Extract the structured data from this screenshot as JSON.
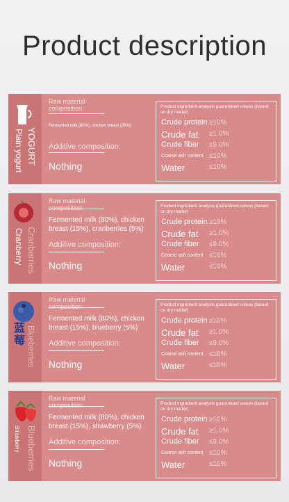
{
  "header": {
    "title": "Product description"
  },
  "cards": [
    {
      "side_labels": [
        "YOGURT",
        "Plain yogurt"
      ],
      "raw_label": "Raw material composition:",
      "raw_text": "Fermented milk (80%), chicken breast (20%)",
      "additive_label": "Additive composition:",
      "additive_value": "Nothing",
      "analysis_title": "Product ingredient analysis guaranteed values (based on dry matter)",
      "rows": [
        {
          "name": "Crude protein",
          "value": "≥10%"
        },
        {
          "name": "Crude fat",
          "value": "≥1.0%"
        },
        {
          "name": "Crude fiber",
          "value": "≤9.0%"
        },
        {
          "name": "Coarse ash content",
          "value": "≤10%"
        },
        {
          "name": "Water",
          "value": "≤10%"
        }
      ]
    },
    {
      "side_labels": [
        "Cranberries",
        "Cranberry"
      ],
      "raw_label": "Raw material composition:",
      "raw_text": "Fermented milk (80%), chicken breast (15%), cranberries (5%)",
      "additive_label": "Additive composition:",
      "additive_value": "Nothing",
      "analysis_title": "Product ingredient analysis guaranteed values (based on dry matter)",
      "rows": [
        {
          "name": "Crude protein",
          "value": "≥10%"
        },
        {
          "name": "Crude fat",
          "value": "≥1.0%"
        },
        {
          "name": "Crude fiber",
          "value": "≤9.0%"
        },
        {
          "name": "Coarse ash content",
          "value": "≤10%"
        },
        {
          "name": "Water",
          "value": "≤10%"
        }
      ]
    },
    {
      "side_labels": [
        "Blueberries",
        "蓝莓"
      ],
      "raw_label": "Raw material composition:",
      "raw_text": "Fermented milk (80%), chicken breast (15%), blueberry (5%)",
      "additive_label": "Additive composition:",
      "additive_value": "Nothing",
      "analysis_title": "Product ingredient analysis guaranteed values (based on dry matter)",
      "rows": [
        {
          "name": "Crude protein",
          "value": "≥10%"
        },
        {
          "name": "Crude fat",
          "value": "≥1.0%"
        },
        {
          "name": "Crude fiber",
          "value": "≤9.0%"
        },
        {
          "name": "Coarse ash content",
          "value": "≤10%"
        },
        {
          "name": "Water",
          "value": "≤10%"
        }
      ]
    },
    {
      "side_labels": [
        "Blueberries",
        "Strawberry"
      ],
      "raw_label": "Raw material composition:",
      "raw_text": "Fermented milk (80%), chicken breast (15%), strawberry (5%)",
      "additive_label": "Additive composition:",
      "additive_value": "Nothing",
      "analysis_title": "Product ingredient analysis guaranteed values (based on dry matter)",
      "rows": [
        {
          "name": "Crude protein",
          "value": "≥10%"
        },
        {
          "name": "Crude fat",
          "value": "≥1.0%"
        },
        {
          "name": "Crude fiber",
          "value": "≤9.0%"
        },
        {
          "name": "Coarse ash content",
          "value": "≤10%"
        },
        {
          "name": "Water",
          "value": "≤10%"
        }
      ]
    }
  ]
}
